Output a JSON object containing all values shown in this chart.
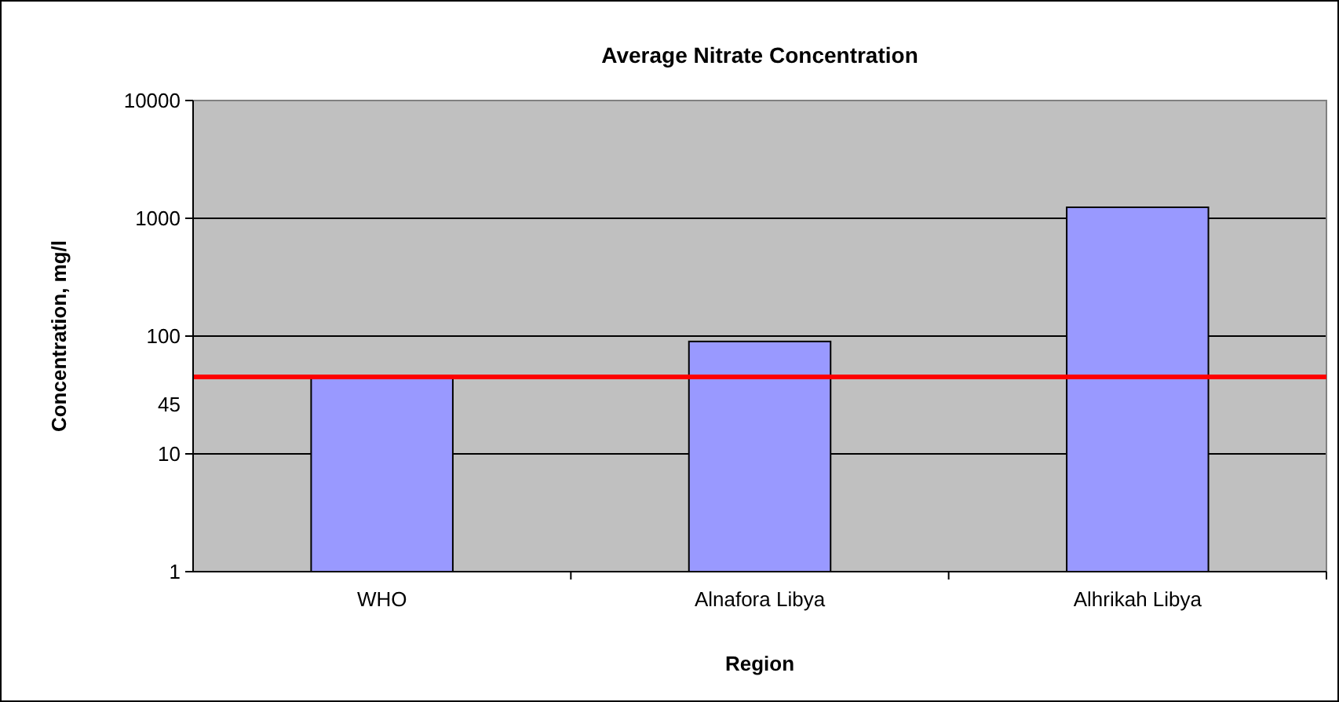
{
  "chart_data": {
    "type": "bar",
    "title": "Average Nitrate Concentration",
    "xlabel": "Region",
    "ylabel": "Concentration, mg/l",
    "categories": [
      "WHO",
      "Alnafora Libya",
      "Alhrikah Libya"
    ],
    "values": [
      45,
      90,
      1240
    ],
    "color": "#9999ff",
    "log": true,
    "ylim": [
      1,
      10000
    ],
    "yticks": [
      1,
      10,
      100,
      1000,
      10000
    ],
    "grid": "y",
    "ref_lines": [
      {
        "axis": "y",
        "value": 45,
        "label": "45",
        "color": "#ff0000"
      }
    ]
  }
}
